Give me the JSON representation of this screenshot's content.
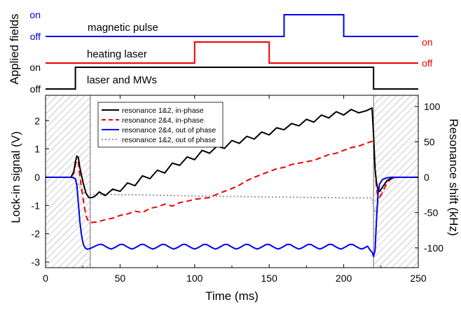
{
  "chart_data": [
    {
      "type": "line",
      "panel": "applied-fields",
      "ylabel": "Applied fields",
      "xlim": [
        0,
        250
      ],
      "series": [
        {
          "name": "magnetic pulse",
          "color": "#0000ee",
          "level_labels": {
            "on": "on",
            "off": "off"
          },
          "label_side": "left",
          "x": [
            0,
            160,
            160,
            200,
            200,
            250
          ],
          "y": [
            0,
            0,
            1,
            1,
            0,
            0
          ]
        },
        {
          "name": "heating laser",
          "color": "#ee0000",
          "level_labels": {
            "on": "on",
            "off": "off"
          },
          "label_side": "right",
          "x": [
            0,
            100,
            100,
            150,
            150,
            250
          ],
          "y": [
            0,
            0,
            1,
            1,
            0,
            0
          ]
        },
        {
          "name": "laser and MWs",
          "color": "#000000",
          "level_labels": {
            "on": "on",
            "off": "off"
          },
          "label_side": "left",
          "x": [
            0,
            20,
            20,
            220,
            220,
            250
          ],
          "y": [
            0,
            0,
            1,
            1,
            0,
            0
          ]
        }
      ]
    },
    {
      "type": "line",
      "panel": "lock-in",
      "xlabel": "Time (ms)",
      "ylabel": "Lock-in signal (V)",
      "y2label": "Resonance shift (kHz)",
      "xlim": [
        0,
        250
      ],
      "ylim": [
        -3.2,
        2.9
      ],
      "xticks": [
        0,
        50,
        100,
        150,
        200,
        250
      ],
      "yticks": [
        -3,
        -2,
        -1,
        0,
        1,
        2
      ],
      "y2ticks": [
        -100,
        -50,
        0,
        50,
        100
      ],
      "y2_per_volt": 40,
      "hatched_regions": [
        [
          0,
          30
        ],
        [
          220,
          250
        ]
      ],
      "vlines": [
        30,
        220
      ],
      "legend_position": "upper-left",
      "series": [
        {
          "name": "resonance 1&2, in-phase",
          "color": "#000000",
          "dash": "solid",
          "x": [
            0,
            17,
            19,
            20,
            21,
            22,
            23,
            25,
            27,
            29,
            31,
            33,
            36,
            40,
            45,
            50,
            55,
            60,
            65,
            70,
            75,
            80,
            85,
            90,
            95,
            100,
            105,
            110,
            115,
            120,
            125,
            130,
            135,
            140,
            145,
            150,
            155,
            160,
            165,
            170,
            175,
            180,
            185,
            190,
            195,
            200,
            205,
            210,
            215,
            219,
            220,
            221,
            222,
            223,
            224,
            226,
            229,
            232,
            235,
            238,
            242,
            246,
            250
          ],
          "y": [
            0,
            0,
            0.2,
            0.55,
            0.75,
            0.7,
            0.35,
            -0.15,
            -0.55,
            -0.72,
            -0.72,
            -0.68,
            -0.52,
            -0.65,
            -0.42,
            -0.5,
            -0.2,
            -0.3,
            0.05,
            -0.05,
            0.25,
            0.15,
            0.5,
            0.42,
            0.72,
            0.62,
            0.95,
            0.85,
            1.1,
            1.02,
            1.3,
            1.2,
            1.45,
            1.35,
            1.6,
            1.5,
            1.75,
            1.68,
            1.9,
            1.82,
            2.05,
            1.95,
            2.2,
            2.1,
            2.32,
            2.2,
            2.4,
            2.28,
            2.35,
            2.45,
            1.5,
            0.3,
            -0.2,
            -0.45,
            -0.5,
            -0.35,
            -0.12,
            -0.03,
            0,
            0,
            0,
            0,
            0
          ]
        },
        {
          "name": "resonance 2&4, in-phase",
          "color": "#ee0000",
          "dash": "dashed",
          "x": [
            0,
            17,
            19,
            20,
            21,
            22,
            23,
            25,
            27,
            29,
            31,
            35,
            40,
            45,
            50,
            55,
            60,
            65,
            70,
            75,
            80,
            85,
            90,
            95,
            100,
            105,
            110,
            115,
            120,
            125,
            130,
            135,
            140,
            145,
            150,
            155,
            160,
            165,
            170,
            175,
            180,
            185,
            190,
            195,
            200,
            205,
            210,
            215,
            219,
            220,
            221,
            222,
            223,
            224,
            226,
            229,
            232,
            235,
            238,
            242,
            246,
            250
          ],
          "y": [
            0,
            0,
            0.15,
            0.45,
            0.6,
            0.55,
            0.05,
            -0.7,
            -1.35,
            -1.58,
            -1.6,
            -1.58,
            -1.5,
            -1.45,
            -1.35,
            -1.3,
            -1.2,
            -1.25,
            -1.1,
            -1.05,
            -0.95,
            -1.02,
            -0.9,
            -0.85,
            -0.78,
            -0.75,
            -0.72,
            -0.6,
            -0.5,
            -0.4,
            -0.28,
            -0.12,
            0,
            0.1,
            0.2,
            0.3,
            0.35,
            0.45,
            0.5,
            0.55,
            0.6,
            0.7,
            0.8,
            0.85,
            0.95,
            1.05,
            1.1,
            1.2,
            1.27,
            1.25,
            0.4,
            -0.4,
            -0.7,
            -0.72,
            -0.55,
            -0.2,
            -0.05,
            0,
            0,
            0,
            0,
            0
          ]
        },
        {
          "name": "resonance 2&4, out of phase",
          "color": "#0000ee",
          "dash": "solid",
          "x": [
            0,
            18,
            20,
            21,
            22,
            23,
            24,
            25,
            26,
            27,
            28,
            30,
            32,
            34,
            36,
            38,
            40,
            42,
            44,
            46,
            48,
            50,
            52,
            54,
            56,
            58,
            60,
            62,
            64,
            66,
            68,
            70,
            72,
            74,
            76,
            78,
            80,
            82,
            84,
            86,
            88,
            90,
            92,
            94,
            96,
            98,
            100,
            102,
            104,
            106,
            108,
            110,
            112,
            114,
            116,
            118,
            120,
            122,
            124,
            126,
            128,
            130,
            132,
            134,
            136,
            138,
            140,
            142,
            144,
            146,
            148,
            150,
            152,
            154,
            156,
            158,
            160,
            162,
            164,
            166,
            168,
            170,
            172,
            174,
            176,
            178,
            180,
            182,
            184,
            186,
            188,
            190,
            192,
            194,
            196,
            198,
            200,
            202,
            204,
            206,
            208,
            210,
            212,
            214,
            216,
            218,
            219,
            220,
            221,
            222,
            223,
            224,
            226,
            229,
            232,
            235,
            238,
            242,
            246,
            250
          ],
          "y": [
            0,
            0,
            -0.05,
            -0.3,
            -0.9,
            -1.55,
            -2.0,
            -2.3,
            -2.45,
            -2.52,
            -2.55,
            -2.52,
            -2.47,
            -2.42,
            -2.38,
            -2.38,
            -2.44,
            -2.5,
            -2.54,
            -2.5,
            -2.44,
            -2.38,
            -2.38,
            -2.44,
            -2.5,
            -2.54,
            -2.5,
            -2.44,
            -2.38,
            -2.38,
            -2.44,
            -2.5,
            -2.54,
            -2.5,
            -2.44,
            -2.38,
            -2.38,
            -2.44,
            -2.5,
            -2.54,
            -2.5,
            -2.44,
            -2.38,
            -2.38,
            -2.44,
            -2.5,
            -2.54,
            -2.5,
            -2.44,
            -2.38,
            -2.38,
            -2.44,
            -2.5,
            -2.54,
            -2.5,
            -2.44,
            -2.38,
            -2.38,
            -2.44,
            -2.5,
            -2.54,
            -2.5,
            -2.44,
            -2.38,
            -2.38,
            -2.44,
            -2.5,
            -2.54,
            -2.5,
            -2.44,
            -2.38,
            -2.38,
            -2.44,
            -2.5,
            -2.54,
            -2.5,
            -2.44,
            -2.38,
            -2.38,
            -2.44,
            -2.5,
            -2.54,
            -2.5,
            -2.44,
            -2.38,
            -2.38,
            -2.44,
            -2.5,
            -2.54,
            -2.5,
            -2.44,
            -2.38,
            -2.38,
            -2.44,
            -2.5,
            -2.54,
            -2.5,
            -2.44,
            -2.38,
            -2.38,
            -2.44,
            -2.5,
            -2.54,
            -2.5,
            -2.44,
            -2.6,
            -2.65,
            -2.8,
            -2.6,
            -1.5,
            -0.6,
            -0.25,
            -0.08,
            -0.02,
            0,
            0,
            0,
            0,
            0,
            0
          ]
        },
        {
          "name": "resonance 1&2, out of phase",
          "color": "#999999",
          "dash": "dotted",
          "x": [
            0,
            18,
            20,
            22,
            24,
            26,
            28,
            30,
            35,
            40,
            50,
            60,
            70,
            80,
            90,
            100,
            110,
            120,
            130,
            140,
            150,
            160,
            170,
            180,
            190,
            200,
            210,
            219,
            220,
            221,
            222,
            224,
            226,
            229,
            232,
            236,
            240,
            250
          ],
          "y": [
            0,
            0,
            -0.1,
            -0.25,
            -0.42,
            -0.55,
            -0.62,
            -0.63,
            -0.62,
            -0.6,
            -0.62,
            -0.62,
            -0.63,
            -0.64,
            -0.65,
            -0.66,
            -0.67,
            -0.68,
            -0.68,
            -0.69,
            -0.7,
            -0.7,
            -0.71,
            -0.72,
            -0.72,
            -0.73,
            -0.73,
            -0.73,
            -1.1,
            -1.25,
            -1.1,
            -0.7,
            -0.4,
            -0.15,
            -0.05,
            0,
            0,
            0
          ]
        }
      ]
    }
  ]
}
